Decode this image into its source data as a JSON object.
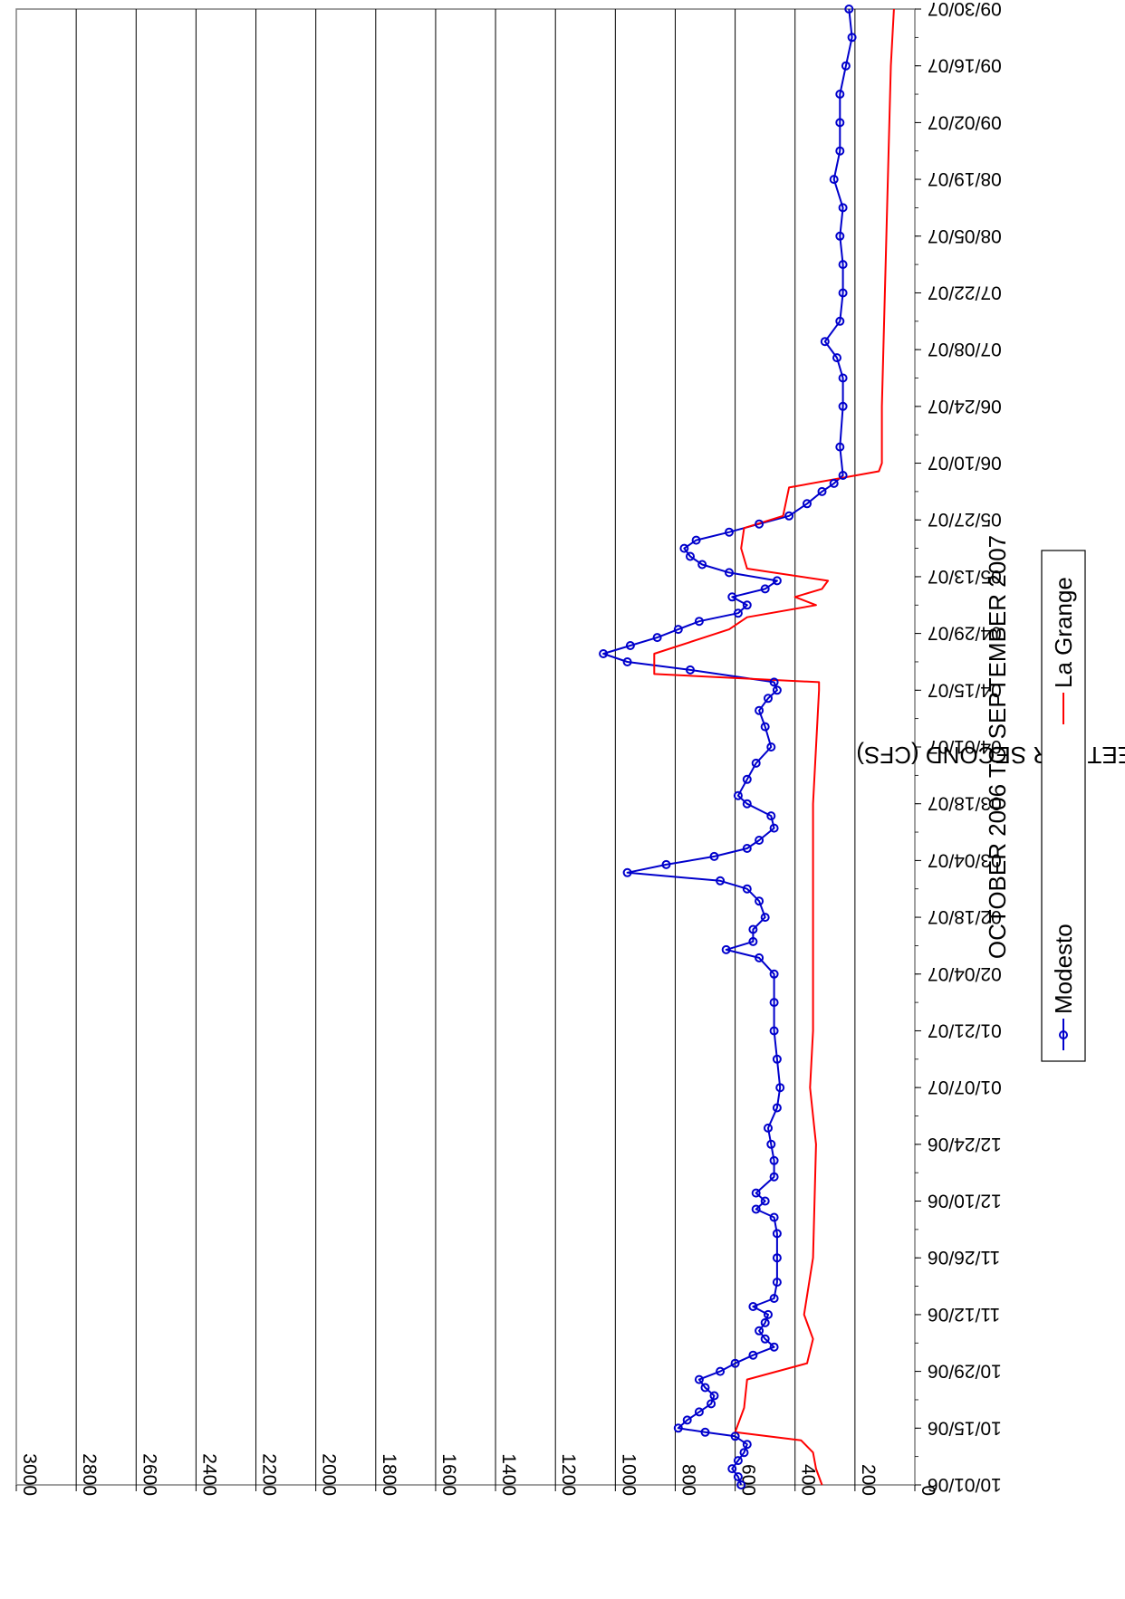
{
  "chart_data": {
    "type": "line",
    "orientation": "rotated-90-clockwise",
    "xlabel": "OCTOBER 2006 TO SEPTEMBER 2007",
    "ylabel": "FLOW IN CUBIC FEET PER SECOND (CFS)",
    "ylim": [
      0,
      3000
    ],
    "ytick_step": 200,
    "y_ticks": [
      "0",
      "200",
      "400",
      "600",
      "800",
      "1000",
      "1200",
      "1400",
      "1600",
      "1800",
      "2000",
      "2200",
      "2400",
      "2600",
      "2800",
      "3000"
    ],
    "xlim": [
      "10/01/06",
      "09/30/07"
    ],
    "x_ticks": [
      "10/01/06",
      "10/15/06",
      "10/29/06",
      "11/12/06",
      "11/26/06",
      "12/10/06",
      "12/24/06",
      "01/07/07",
      "01/21/07",
      "02/04/07",
      "02/18/07",
      "03/04/07",
      "03/18/07",
      "04/01/07",
      "04/15/07",
      "04/29/07",
      "05/13/07",
      "05/27/07",
      "06/10/07",
      "06/24/07",
      "07/08/07",
      "07/22/07",
      "08/05/07",
      "08/19/07",
      "09/02/07",
      "09/16/07",
      "09/30/07"
    ],
    "grid": true,
    "legend_position": "bottom",
    "series": [
      {
        "name": "Modesto",
        "color": "#0000cc",
        "marker": "circle",
        "points": [
          [
            "10/01/06",
            580
          ],
          [
            "10/03/06",
            590
          ],
          [
            "10/05/06",
            610
          ],
          [
            "10/07/06",
            590
          ],
          [
            "10/09/06",
            570
          ],
          [
            "10/11/06",
            560
          ],
          [
            "10/13/06",
            600
          ],
          [
            "10/14/06",
            700
          ],
          [
            "10/15/06",
            790
          ],
          [
            "10/17/06",
            760
          ],
          [
            "10/19/06",
            720
          ],
          [
            "10/21/06",
            680
          ],
          [
            "10/23/06",
            670
          ],
          [
            "10/25/06",
            700
          ],
          [
            "10/27/06",
            720
          ],
          [
            "10/29/06",
            650
          ],
          [
            "10/31/06",
            600
          ],
          [
            "11/02/06",
            540
          ],
          [
            "11/04/06",
            470
          ],
          [
            "11/06/06",
            500
          ],
          [
            "11/08/06",
            520
          ],
          [
            "11/10/06",
            500
          ],
          [
            "11/12/06",
            490
          ],
          [
            "11/14/06",
            540
          ],
          [
            "11/16/06",
            470
          ],
          [
            "11/20/06",
            460
          ],
          [
            "11/26/06",
            460
          ],
          [
            "12/02/06",
            460
          ],
          [
            "12/06/06",
            470
          ],
          [
            "12/08/06",
            530
          ],
          [
            "12/10/06",
            500
          ],
          [
            "12/12/06",
            530
          ],
          [
            "12/16/06",
            470
          ],
          [
            "12/20/06",
            470
          ],
          [
            "12/24/06",
            480
          ],
          [
            "12/28/06",
            490
          ],
          [
            "01/02/07",
            460
          ],
          [
            "01/07/07",
            450
          ],
          [
            "01/14/07",
            460
          ],
          [
            "01/21/07",
            470
          ],
          [
            "01/28/07",
            470
          ],
          [
            "02/04/07",
            470
          ],
          [
            "02/08/07",
            520
          ],
          [
            "02/10/07",
            630
          ],
          [
            "02/12/07",
            540
          ],
          [
            "02/15/07",
            540
          ],
          [
            "02/18/07",
            500
          ],
          [
            "02/22/07",
            520
          ],
          [
            "02/25/07",
            560
          ],
          [
            "02/27/07",
            650
          ],
          [
            "03/01/07",
            960
          ],
          [
            "03/03/07",
            830
          ],
          [
            "03/05/07",
            670
          ],
          [
            "03/07/07",
            560
          ],
          [
            "03/09/07",
            520
          ],
          [
            "03/12/07",
            470
          ],
          [
            "03/15/07",
            480
          ],
          [
            "03/18/07",
            560
          ],
          [
            "03/20/07",
            590
          ],
          [
            "03/24/07",
            560
          ],
          [
            "03/28/07",
            530
          ],
          [
            "04/01/07",
            480
          ],
          [
            "04/06/07",
            500
          ],
          [
            "04/10/07",
            520
          ],
          [
            "04/13/07",
            490
          ],
          [
            "04/15/07",
            460
          ],
          [
            "04/17/07",
            470
          ],
          [
            "04/20/07",
            750
          ],
          [
            "04/22/07",
            960
          ],
          [
            "04/24/07",
            1040
          ],
          [
            "04/26/07",
            950
          ],
          [
            "04/28/07",
            860
          ],
          [
            "04/30/07",
            790
          ],
          [
            "05/02/07",
            720
          ],
          [
            "05/04/07",
            590
          ],
          [
            "05/06/07",
            560
          ],
          [
            "05/08/07",
            610
          ],
          [
            "05/10/07",
            500
          ],
          [
            "05/12/07",
            460
          ],
          [
            "05/14/07",
            620
          ],
          [
            "05/16/07",
            710
          ],
          [
            "05/18/07",
            750
          ],
          [
            "05/20/07",
            770
          ],
          [
            "05/22/07",
            730
          ],
          [
            "05/24/07",
            620
          ],
          [
            "05/26/07",
            520
          ],
          [
            "05/28/07",
            420
          ],
          [
            "05/31/07",
            360
          ],
          [
            "06/03/07",
            310
          ],
          [
            "06/05/07",
            270
          ],
          [
            "06/07/07",
            240
          ],
          [
            "06/14/07",
            250
          ],
          [
            "06/24/07",
            240
          ],
          [
            "07/01/07",
            240
          ],
          [
            "07/06/07",
            260
          ],
          [
            "07/10/07",
            300
          ],
          [
            "07/15/07",
            250
          ],
          [
            "07/22/07",
            240
          ],
          [
            "07/29/07",
            240
          ],
          [
            "08/05/07",
            250
          ],
          [
            "08/12/07",
            240
          ],
          [
            "08/19/07",
            270
          ],
          [
            "08/26/07",
            250
          ],
          [
            "09/02/07",
            250
          ],
          [
            "09/09/07",
            250
          ],
          [
            "09/16/07",
            230
          ],
          [
            "09/23/07",
            210
          ],
          [
            "09/30/07",
            220
          ]
        ]
      },
      {
        "name": "La Grange",
        "color": "#ff0000",
        "marker": "none",
        "points": [
          [
            "10/01/06",
            310
          ],
          [
            "10/05/06",
            330
          ],
          [
            "10/09/06",
            340
          ],
          [
            "10/12/06",
            380
          ],
          [
            "10/14/06",
            600
          ],
          [
            "10/20/06",
            570
          ],
          [
            "10/27/06",
            560
          ],
          [
            "10/31/06",
            360
          ],
          [
            "11/06/06",
            340
          ],
          [
            "11/12/06",
            370
          ],
          [
            "11/26/06",
            340
          ],
          [
            "12/24/06",
            330
          ],
          [
            "01/07/07",
            350
          ],
          [
            "01/21/07",
            340
          ],
          [
            "03/18/07",
            340
          ],
          [
            "04/15/07",
            320
          ],
          [
            "04/17/07",
            320
          ],
          [
            "04/19/07",
            870
          ],
          [
            "04/24/07",
            870
          ],
          [
            "04/30/07",
            620
          ],
          [
            "05/03/07",
            560
          ],
          [
            "05/06/07",
            330
          ],
          [
            "05/08/07",
            400
          ],
          [
            "05/10/07",
            310
          ],
          [
            "05/12/07",
            290
          ],
          [
            "05/15/07",
            560
          ],
          [
            "05/20/07",
            580
          ],
          [
            "05/25/07",
            570
          ],
          [
            "05/28/07",
            440
          ],
          [
            "06/04/07",
            420
          ],
          [
            "06/08/07",
            120
          ],
          [
            "06/10/07",
            110
          ],
          [
            "06/24/07",
            110
          ],
          [
            "09/16/07",
            80
          ],
          [
            "09/30/07",
            70
          ]
        ]
      }
    ]
  }
}
